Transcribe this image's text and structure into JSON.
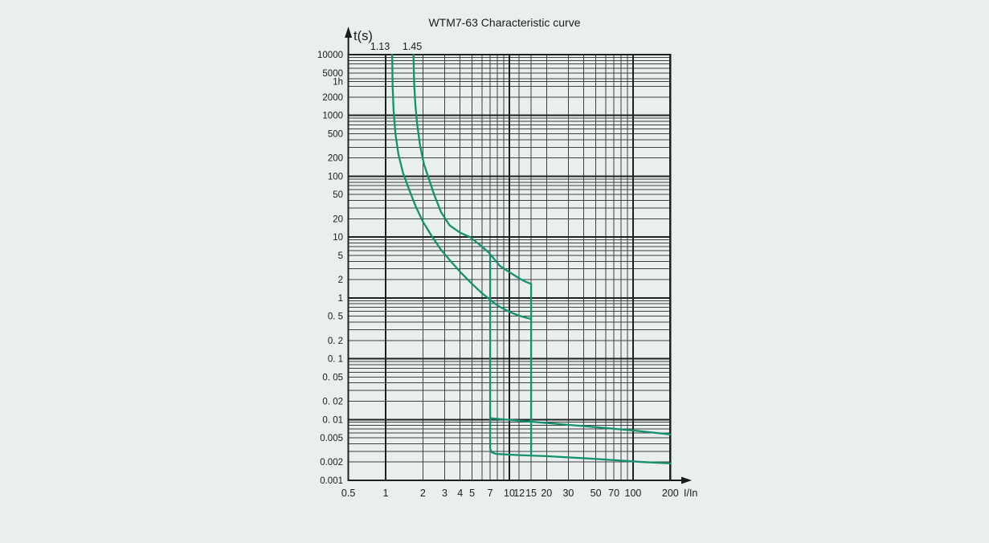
{
  "window": {
    "title": "WTM7-63 Characteristic curve"
  },
  "colors": {
    "background": "#e9efec",
    "grid_minor": "#3c4142",
    "grid_major": "#1e2122",
    "curve": "#14916f",
    "text": "#171c1d"
  },
  "chart_data": {
    "type": "line",
    "title": "WTM7-63 Characteristic curve",
    "grid": "on",
    "legend": "none",
    "x_axis": {
      "label": "I/In",
      "scale": "log",
      "min": 0.5,
      "max": 200,
      "tick_values": [
        0.5,
        1,
        2,
        3,
        4,
        5,
        7,
        10,
        12,
        15,
        20,
        30,
        50,
        70,
        100,
        200
      ],
      "tick_labels": [
        "0.5",
        "1",
        "2",
        "3",
        "4",
        "5",
        "7",
        "10",
        "12",
        "15",
        "20",
        "30",
        "50",
        "70",
        "100",
        "200"
      ],
      "gridlines": [
        1,
        2,
        3,
        4,
        5,
        6,
        7,
        8,
        9,
        10,
        12,
        15,
        20,
        30,
        40,
        50,
        60,
        70,
        80,
        90,
        100,
        200
      ],
      "major_gridlines": [
        1,
        10,
        100
      ]
    },
    "y_axis": {
      "label": "t(s)",
      "scale": "log",
      "min": 0.001,
      "max": 10000,
      "tick_values": [
        10000,
        5000,
        3600,
        2000,
        1000,
        500,
        200,
        100,
        50,
        20,
        10,
        5,
        2,
        1,
        0.5,
        0.2,
        0.1,
        0.05,
        0.02,
        0.01,
        0.005,
        0.002,
        0.001
      ],
      "tick_labels": [
        "10000",
        "5000",
        "1h",
        "2000",
        "1000",
        "500",
        "200",
        "100",
        "50",
        "20",
        "10",
        "5",
        "2",
        "1",
        "0. 5",
        "0. 2",
        "0. 1",
        "0. 05",
        "0. 02",
        "0. 01",
        "0.005",
        "0.002",
        "0.001"
      ],
      "gridlines": [
        0.001,
        0.002,
        0.003,
        0.004,
        0.005,
        0.006,
        0.007,
        0.008,
        0.009,
        0.01,
        0.02,
        0.03,
        0.04,
        0.05,
        0.06,
        0.07,
        0.08,
        0.09,
        0.1,
        0.2,
        0.3,
        0.4,
        0.5,
        0.6,
        0.7,
        0.8,
        0.9,
        1,
        2,
        3,
        4,
        5,
        6,
        7,
        8,
        9,
        10,
        20,
        30,
        40,
        50,
        60,
        70,
        80,
        90,
        100,
        200,
        300,
        400,
        500,
        600,
        700,
        800,
        900,
        1000,
        2000,
        3000,
        3600,
        4000,
        5000,
        6000,
        7000,
        8000,
        9000,
        10000
      ],
      "major_gridlines": [
        0.001,
        0.01,
        0.1,
        1,
        10,
        100,
        1000,
        10000
      ]
    },
    "series": [
      {
        "name": "thermal-curve-1.13",
        "label": "1.13",
        "points": [
          [
            1.13,
            10000
          ],
          [
            1.14,
            3000
          ],
          [
            1.16,
            1200
          ],
          [
            1.2,
            500
          ],
          [
            1.27,
            230
          ],
          [
            1.38,
            115
          ],
          [
            1.55,
            60
          ],
          [
            1.75,
            32
          ],
          [
            2.0,
            18
          ],
          [
            2.35,
            10.5
          ],
          [
            2.8,
            6.2
          ],
          [
            3.4,
            3.9
          ],
          [
            4.1,
            2.55
          ],
          [
            5.0,
            1.7
          ],
          [
            6.0,
            1.2
          ],
          [
            6.9,
            0.95
          ],
          [
            8.2,
            0.73
          ],
          [
            10,
            0.59
          ],
          [
            12,
            0.51
          ],
          [
            13.5,
            0.475
          ],
          [
            15,
            0.45
          ]
        ]
      },
      {
        "name": "thermal-curve-1.45",
        "label": "1.45",
        "points": [
          [
            1.68,
            10000
          ],
          [
            1.7,
            3500
          ],
          [
            1.74,
            1500
          ],
          [
            1.8,
            700
          ],
          [
            1.9,
            320
          ],
          [
            2.04,
            160
          ],
          [
            2.2,
            100
          ],
          [
            2.45,
            52
          ],
          [
            2.8,
            26
          ],
          [
            3.3,
            15.5
          ],
          [
            4.0,
            11.8
          ],
          [
            4.8,
            10
          ],
          [
            5.8,
            7.4
          ],
          [
            6.8,
            5.6
          ],
          [
            8.4,
            3.35
          ],
          [
            10,
            2.65
          ],
          [
            12,
            2.1
          ],
          [
            13.5,
            1.85
          ],
          [
            15,
            1.7
          ]
        ]
      },
      {
        "name": "magnetic-trip-lower-boundary",
        "label": "",
        "points": [
          [
            7,
            5.1
          ],
          [
            7,
            0.0033
          ],
          [
            7.2,
            0.0029
          ],
          [
            7.8,
            0.00272
          ],
          [
            12,
            0.0026
          ],
          [
            20,
            0.0025
          ],
          [
            50,
            0.00225
          ],
          [
            120,
            0.002
          ],
          [
            200,
            0.0019
          ]
        ]
      },
      {
        "name": "magnetic-trip-upper-drop",
        "label": "",
        "points": [
          [
            15,
            1.7
          ],
          [
            15,
            0.00253
          ]
        ]
      },
      {
        "name": "instantaneous-max-trip-time",
        "label": "",
        "points": [
          [
            7,
            0.0105
          ],
          [
            15,
            0.0092
          ],
          [
            40,
            0.0078
          ],
          [
            100,
            0.0066
          ],
          [
            200,
            0.0057
          ]
        ]
      }
    ]
  }
}
